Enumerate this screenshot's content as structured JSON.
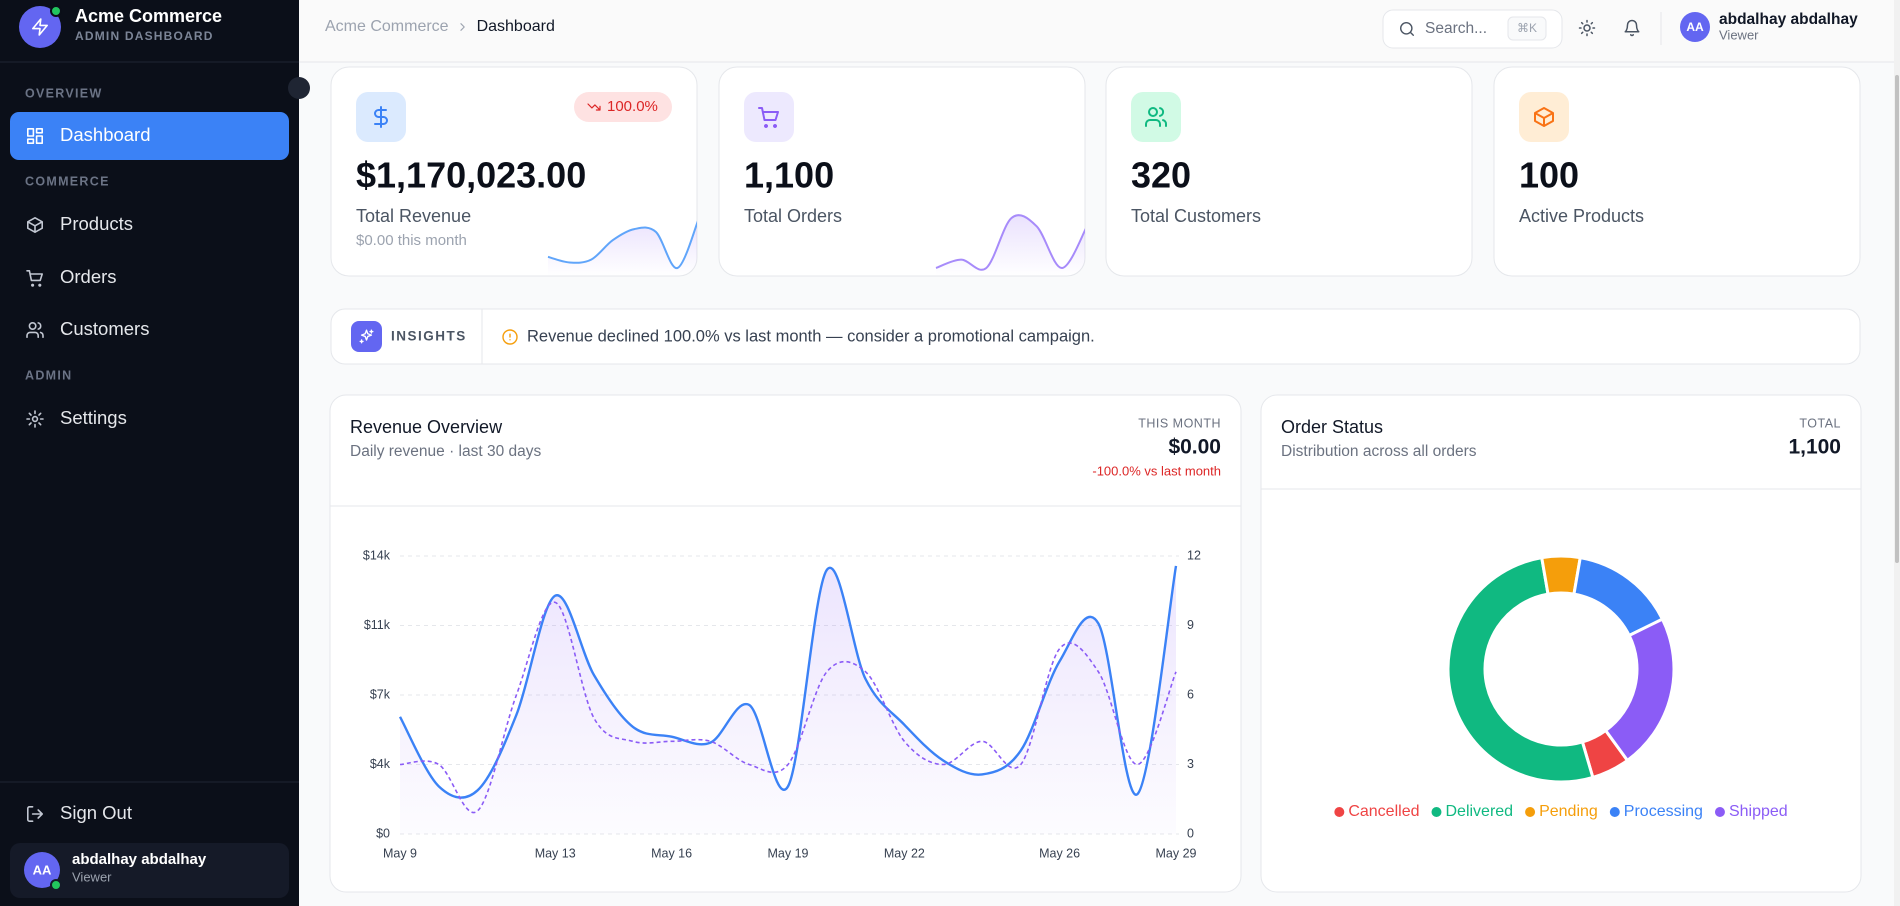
{
  "sidebar": {
    "brand": "Acme Commerce",
    "brand_sub": "ADMIN DASHBOARD",
    "sections": [
      {
        "label": "OVERVIEW",
        "items": [
          "Dashboard"
        ]
      },
      {
        "label": "COMMERCE",
        "items": [
          "Products",
          "Orders",
          "Customers"
        ]
      },
      {
        "label": "ADMIN",
        "items": [
          "Settings"
        ]
      }
    ],
    "sign_out": "Sign Out",
    "user": {
      "initials": "AA",
      "name": "abdalhay abdalhay",
      "role": "Viewer"
    }
  },
  "header": {
    "breadcrumb": [
      "Acme Commerce",
      "Dashboard"
    ],
    "search": "Search...",
    "shortcut": "⌘K",
    "user": {
      "initials": "AA",
      "name": "abdalhay abdalhay",
      "role": "Viewer"
    }
  },
  "stats": [
    {
      "value": "$1,170,023.00",
      "label": "Total Revenue",
      "sub": "$0.00 this month",
      "badge": "100.0%",
      "sparkline": [
        2,
        1,
        1.5,
        5,
        7,
        6.5,
        0,
        9
      ]
    },
    {
      "value": "1,100",
      "label": "Total Orders",
      "sparkline": [
        1,
        2,
        1,
        7,
        6,
        1,
        6
      ]
    },
    {
      "value": "320",
      "label": "Total Customers"
    },
    {
      "value": "100",
      "label": "Active Products"
    }
  ],
  "insights": {
    "label": "INSIGHTS",
    "text": "Revenue declined 100.0% vs last month — consider a promotional campaign."
  },
  "revenue_panel": {
    "title": "Revenue Overview",
    "subtitle": "Daily revenue · last 30 days",
    "kicker": "THIS MONTH",
    "amount": "$0.00",
    "change": "-100.0% vs last month",
    "chart_data": {
      "type": "line",
      "categories": [
        "May 9",
        null,
        null,
        null,
        "May 13",
        null,
        null,
        "May 16",
        null,
        null,
        "May 19",
        null,
        null,
        "May 22",
        null,
        null,
        null,
        "May 26",
        null,
        null,
        "May 29"
      ],
      "series": [
        {
          "color": "#3b82f6",
          "area": true,
          "values": [
            5900,
            2400,
            2200,
            6000,
            12000,
            8000,
            5400,
            4900,
            4600,
            6500,
            2400,
            13300,
            7800,
            5500,
            3700,
            3000,
            4200,
            8700,
            10600,
            2000,
            13500
          ]
        },
        {
          "color": "#8b5cf6",
          "dashed": true,
          "axis": "y2",
          "values": [
            3,
            3,
            1,
            6,
            10,
            5,
            4,
            4,
            4,
            3,
            3,
            7,
            7,
            4,
            3,
            4,
            3,
            8,
            7,
            3,
            7
          ]
        }
      ],
      "ylim": [
        0,
        14000
      ],
      "yticks": [
        {
          "value": 0,
          "label": "$0"
        },
        {
          "value": 3500,
          "label": "$4k"
        },
        {
          "value": 7000,
          "label": "$7k"
        },
        {
          "value": 10500,
          "label": "$11k"
        },
        {
          "value": 14000,
          "label": "$14k"
        }
      ],
      "y2lim": [
        0,
        12
      ],
      "y2ticks": [
        0,
        3,
        6,
        9,
        12
      ],
      "grid": true
    }
  },
  "status_panel": {
    "title": "Order Status",
    "subtitle": "Distribution across all orders",
    "kicker": "TOTAL",
    "amount": "1,100",
    "chart_data": {
      "type": "pie",
      "donut": true,
      "categories": [
        "Cancelled",
        "Delivered",
        "Pending",
        "Processing",
        "Shipped"
      ],
      "values": [
        60,
        570,
        60,
        165,
        245
      ],
      "colors": [
        "#ef4444",
        "#10b981",
        "#f59e0b",
        "#3b82f6",
        "#8b5cf6"
      ],
      "legend": "bottom"
    }
  }
}
